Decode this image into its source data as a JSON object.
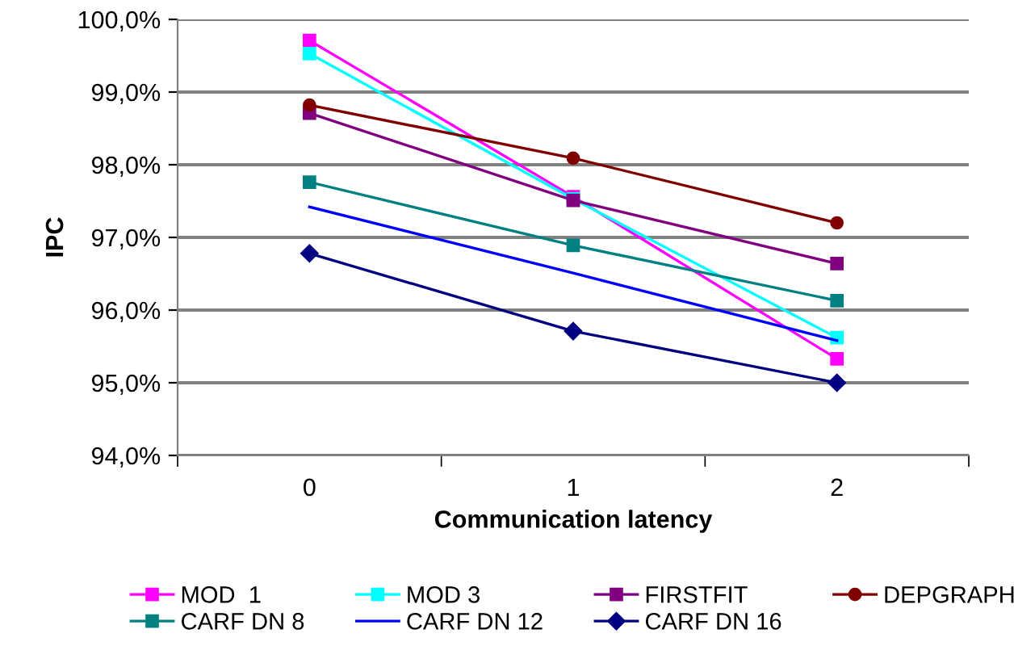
{
  "chart_data": {
    "type": "line",
    "xlabel": "Communication latency",
    "ylabel": "IPC",
    "categories": [
      "0",
      "1",
      "2"
    ],
    "ylim": [
      94,
      100
    ],
    "yticks": [
      {
        "value": 94,
        "label": "94,0%"
      },
      {
        "value": 95,
        "label": "95,0%"
      },
      {
        "value": 96,
        "label": "96,0%"
      },
      {
        "value": 97,
        "label": "97,0%"
      },
      {
        "value": 98,
        "label": "98,0%"
      },
      {
        "value": 99,
        "label": "99,0%"
      },
      {
        "value": 100,
        "label": "100,0%"
      }
    ],
    "grid": "y",
    "legend": "bottom",
    "series": [
      {
        "name": "MOD  1",
        "color": "#ff00ff",
        "marker": "square",
        "values": [
          99.71,
          97.56,
          95.33
        ]
      },
      {
        "name": "MOD 3",
        "color": "#00ffff",
        "marker": "square",
        "values": [
          99.53,
          97.53,
          95.62
        ]
      },
      {
        "name": "FIRSTFIT",
        "color": "#800080",
        "marker": "square",
        "values": [
          98.71,
          97.51,
          96.64
        ]
      },
      {
        "name": "DEPGRAPH",
        "color": "#800000",
        "marker": "circle",
        "values": [
          98.82,
          98.09,
          97.2
        ]
      },
      {
        "name": "CARF DN 8",
        "color": "#008080",
        "marker": "square",
        "values": [
          97.76,
          96.89,
          96.13
        ]
      },
      {
        "name": "CARF DN 12",
        "color": "#0000ff",
        "marker": "none",
        "values": [
          97.42,
          96.51,
          95.58
        ]
      },
      {
        "name": "CARF DN 16",
        "color": "#000080",
        "marker": "diamond",
        "values": [
          96.78,
          95.71,
          95.0
        ]
      }
    ]
  }
}
